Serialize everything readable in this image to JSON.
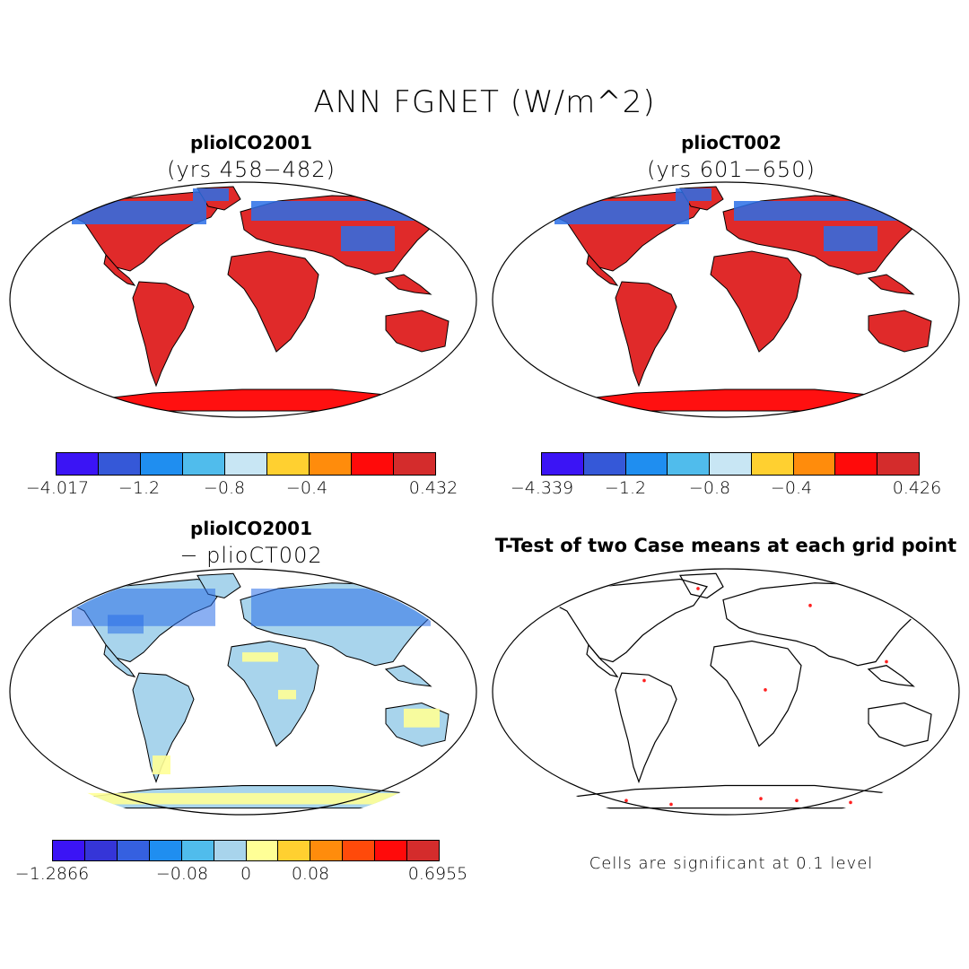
{
  "title": "ANN FGNET (W/m^2)",
  "panels": {
    "a": {
      "title": "pliolCO2001",
      "subtitle": "(yrs 458−482)"
    },
    "b": {
      "title": "plioCT002",
      "subtitle": "(yrs 601−650)"
    },
    "c": {
      "title": "pliolCO2001",
      "subtitle": "− plioCT002"
    },
    "d": {
      "title": "T-Test of two Case means at each grid point",
      "note": "Cells are significant at 0.1 level"
    }
  },
  "colorbars": {
    "a": {
      "colors": [
        "#3b14f5",
        "#3558d8",
        "#1f8ef0",
        "#50bcec",
        "#c8e6f4",
        "#ffd030",
        "#ff8c0c",
        "#ff0a0a",
        "#d42c2c"
      ],
      "labels": [
        "−4.017",
        "−1.2",
        "−0.8",
        "−0.4",
        "0.432"
      ]
    },
    "b": {
      "colors": [
        "#3b14f5",
        "#3558d8",
        "#1f8ef0",
        "#50bcec",
        "#c8e6f4",
        "#ffd030",
        "#ff8c0c",
        "#ff0a0a",
        "#d42c2c"
      ],
      "labels": [
        "−4.339",
        "−1.2",
        "−0.8",
        "−0.4",
        "0.426"
      ]
    },
    "c": {
      "colors": [
        "#3b14f5",
        "#3535d8",
        "#3560e0",
        "#1f8ef0",
        "#50bcec",
        "#a8d4ec",
        "#ffff96",
        "#ffd030",
        "#ff8c0c",
        "#ff4a0a",
        "#ff0a0a",
        "#d42c2c"
      ],
      "labels": [
        "−1.2866",
        "−0.08",
        "0",
        "0.08",
        "0.6955"
      ]
    }
  },
  "map_colors": {
    "warm": "#e02a2a",
    "bright_red": "#ff1010",
    "cold_blue": "#2a6ee8",
    "light_blue": "#a8d4ec",
    "yellow": "#ffff96",
    "significant_dot": "#ff2020"
  }
}
